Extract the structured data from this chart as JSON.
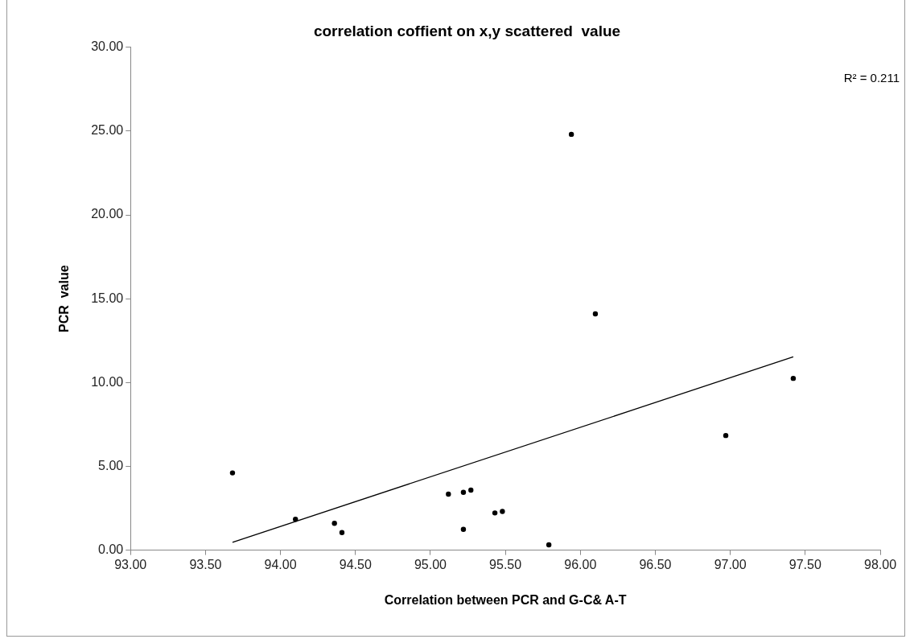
{
  "chart_data": {
    "type": "scatter",
    "title": "correlation coffient on x,y scattered  value",
    "xlabel": "Correlation between PCR and G-C& A-T",
    "ylabel": "PCR  value",
    "annotations": [
      "R² = 0.211"
    ],
    "series": [
      {
        "color": "#000000",
        "marker": "circle",
        "x": [
          93.68,
          94.1,
          94.36,
          94.41,
          95.12,
          95.22,
          95.27,
          95.22,
          95.43,
          95.48,
          95.79,
          95.94,
          96.1,
          96.97,
          97.42
        ],
        "values": [
          4.61,
          1.84,
          1.6,
          1.05,
          3.34,
          3.45,
          3.58,
          1.24,
          2.22,
          2.31,
          0.32,
          24.81,
          14.1,
          6.84,
          10.25
        ]
      },
      {
        "type": "line",
        "color": "#000000",
        "marker": "none",
        "line_style": "solid",
        "x": [
          93.68,
          97.42
        ],
        "values": [
          0.47,
          11.53
        ]
      }
    ],
    "xlim": [
      93,
      98
    ],
    "ylim": [
      0,
      30
    ],
    "xticks": [
      {
        "value": 93,
        "label": "93.00"
      },
      {
        "value": 93.5,
        "label": "93.50"
      },
      {
        "value": 94,
        "label": "94.00"
      },
      {
        "value": 94.5,
        "label": "94.50"
      },
      {
        "value": 95,
        "label": "95.00"
      },
      {
        "value": 95.5,
        "label": "95.50"
      },
      {
        "value": 96,
        "label": "96.00"
      },
      {
        "value": 96.5,
        "label": "96.50"
      },
      {
        "value": 97,
        "label": "97.00"
      },
      {
        "value": 97.5,
        "label": "97.50"
      },
      {
        "value": 98,
        "label": "98.00"
      }
    ],
    "yticks": [
      {
        "value": 0,
        "label": "0.00"
      },
      {
        "value": 5,
        "label": "5.00"
      },
      {
        "value": 10,
        "label": "10.00"
      },
      {
        "value": 15,
        "label": "15.00"
      },
      {
        "value": 20,
        "label": "20.00"
      },
      {
        "value": 25,
        "label": "25.00"
      },
      {
        "value": 30,
        "label": "30.00"
      }
    ],
    "grid": false,
    "legend": false
  }
}
